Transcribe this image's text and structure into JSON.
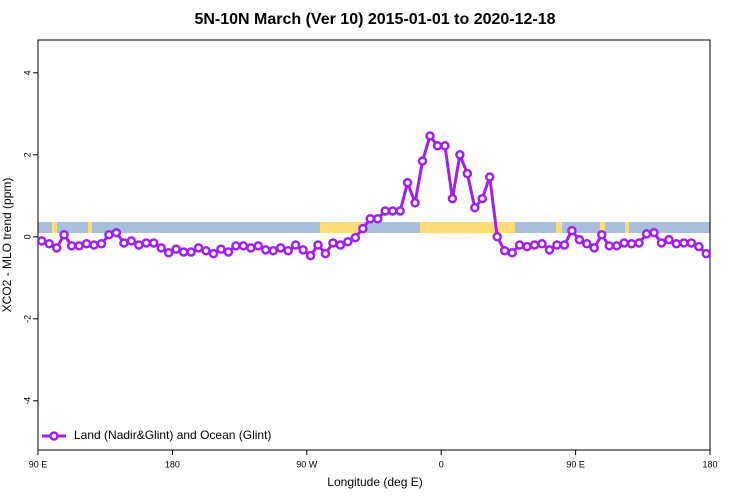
{
  "chart_data": {
    "type": "line",
    "title": "5N-10N March (Ver 10)   2015-01-01 to 2020-12-18",
    "x_label": "Longitude (deg E)",
    "y_label": "XCO2 - MLO trend (ppm)",
    "xlim": [
      90,
      540
    ],
    "xticks": [
      {
        "value": 90,
        "label": "90 E"
      },
      180,
      {
        "value": 270,
        "label": "90 W"
      },
      {
        "value": 360,
        "label": "0"
      },
      {
        "value": 450,
        "label": "90 E"
      },
      {
        "value": 540,
        "label": "180"
      }
    ],
    "ylim": [
      -5.2,
      4.8
    ],
    "yticks": [
      -4,
      -2,
      0,
      2,
      4
    ],
    "legend": "bottom-left",
    "x": [
      92.5,
      97.5,
      102.5,
      107.5,
      112.5,
      117.5,
      122.5,
      127.5,
      132.5,
      137.5,
      142.5,
      147.5,
      152.5,
      157.5,
      162.5,
      167.5,
      172.5,
      177.5,
      182.5,
      187.5,
      192.5,
      197.5,
      202.5,
      207.5,
      212.5,
      217.5,
      222.5,
      227.5,
      232.5,
      237.5,
      242.5,
      247.5,
      252.5,
      257.5,
      262.5,
      267.5,
      272.5,
      277.5,
      282.5,
      287.5,
      292.5,
      297.5,
      302.5,
      307.5,
      312.5,
      317.5,
      322.5,
      327.5,
      332.5,
      337.5,
      342.5,
      347.5,
      352.5,
      357.5,
      362.5,
      367.5,
      372.5,
      377.5,
      382.5,
      387.5,
      392.5,
      397.5,
      402.5,
      407.5,
      412.5,
      417.5,
      422.5,
      427.5,
      432.5,
      437.5,
      442.5,
      447.5,
      452.5,
      457.5,
      462.5,
      467.5,
      472.5,
      477.5,
      482.5,
      487.5,
      492.5,
      497.5,
      502.5,
      507.5,
      512.5,
      517.5,
      522.5,
      527.5,
      532.5,
      537.5
    ],
    "series": [
      {
        "name": "Land (Nadir&Glint) and Ocean (Glint)",
        "color": "#a020f0",
        "values": [
          -0.1,
          -0.17,
          -0.27,
          0.05,
          -0.22,
          -0.22,
          -0.17,
          -0.2,
          -0.17,
          0.05,
          0.1,
          -0.15,
          -0.1,
          -0.2,
          -0.15,
          -0.15,
          -0.27,
          -0.39,
          -0.3,
          -0.37,
          -0.37,
          -0.27,
          -0.34,
          -0.41,
          -0.3,
          -0.37,
          -0.22,
          -0.22,
          -0.27,
          -0.22,
          -0.32,
          -0.34,
          -0.27,
          -0.34,
          -0.2,
          -0.32,
          -0.46,
          -0.2,
          -0.41,
          -0.15,
          -0.2,
          -0.12,
          -0.02,
          0.2,
          0.44,
          0.44,
          0.63,
          0.63,
          0.63,
          1.32,
          0.83,
          1.85,
          2.46,
          2.22,
          2.22,
          0.93,
          2.0,
          1.54,
          0.71,
          0.93,
          1.46,
          0.0,
          -0.34,
          -0.39,
          -0.2,
          -0.24,
          -0.2,
          -0.17,
          -0.32,
          -0.2,
          -0.2,
          0.15,
          -0.07,
          -0.17,
          -0.27,
          0.05,
          -0.22,
          -0.22,
          -0.15,
          -0.17,
          -0.15,
          0.07,
          0.1,
          -0.15,
          -0.07,
          -0.17,
          -0.15,
          -0.15,
          -0.24,
          -0.41
        ]
      }
    ]
  }
}
